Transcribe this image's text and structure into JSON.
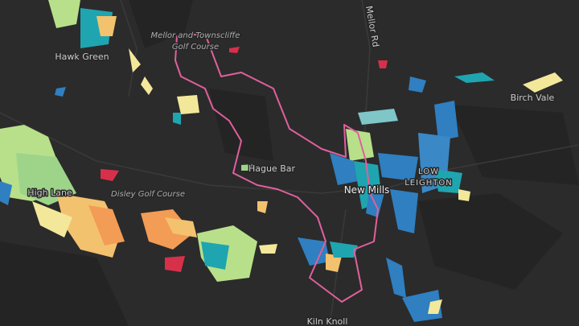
{
  "places": {
    "mellor_rd": "Mellor Rd",
    "golf_mellor_1": "Mellor and Townscliffe",
    "golf_mellor_2": "Golf Course",
    "hawk_green": "Hawk Green",
    "birch_vale": "Birch Vale",
    "hague_bar": "Hague Bar",
    "new_mills": "New Mills",
    "low_leighton_1": "LOW",
    "low_leighton_2": "LEIGHTON",
    "disley_golf": "Disley Golf Course",
    "high_lane": "High Lane",
    "kiln_knoll": "Kiln Knoll"
  }
}
